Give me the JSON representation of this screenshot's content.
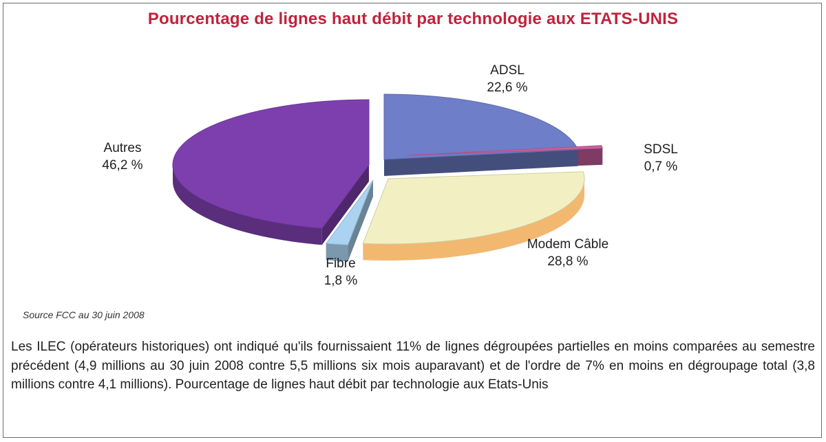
{
  "chart_data": {
    "type": "pie",
    "title": "Pourcentage de lignes haut débit par technologie aux ETATS-UNIS",
    "slices": [
      {
        "name": "ADSL",
        "value": 22.6,
        "value_label": "22,6 %",
        "color": "#6e7ec9"
      },
      {
        "name": "SDSL",
        "value": 0.7,
        "value_label": "0,7 %",
        "color": "#cc5fa0"
      },
      {
        "name": "Modem Câble",
        "value": 28.8,
        "value_label": "28,8 %",
        "color": "#f2f0c2"
      },
      {
        "name": "Fibre",
        "value": 1.8,
        "value_label": "1,8 %",
        "color": "#a9d3f1"
      },
      {
        "name": "Autres",
        "value": 46.2,
        "value_label": "46,2 %",
        "color": "#7d3fae"
      }
    ]
  },
  "source": "Source FCC au 30 juin 2008",
  "description": "Les ILEC (opérateurs historiques) ont indiqué qu'ils fournissaient 11% de lignes dégroupées partielles en moins comparées au semestre précédent (4,9 millions au 30 juin 2008 contre 5,5 millions six mois auparavant) et de l'ordre de 7% en moins en dégroupage total (3,8 millions contre 4,1 millions). Pourcentage de lignes haut débit par technologie aux Etats-Unis"
}
